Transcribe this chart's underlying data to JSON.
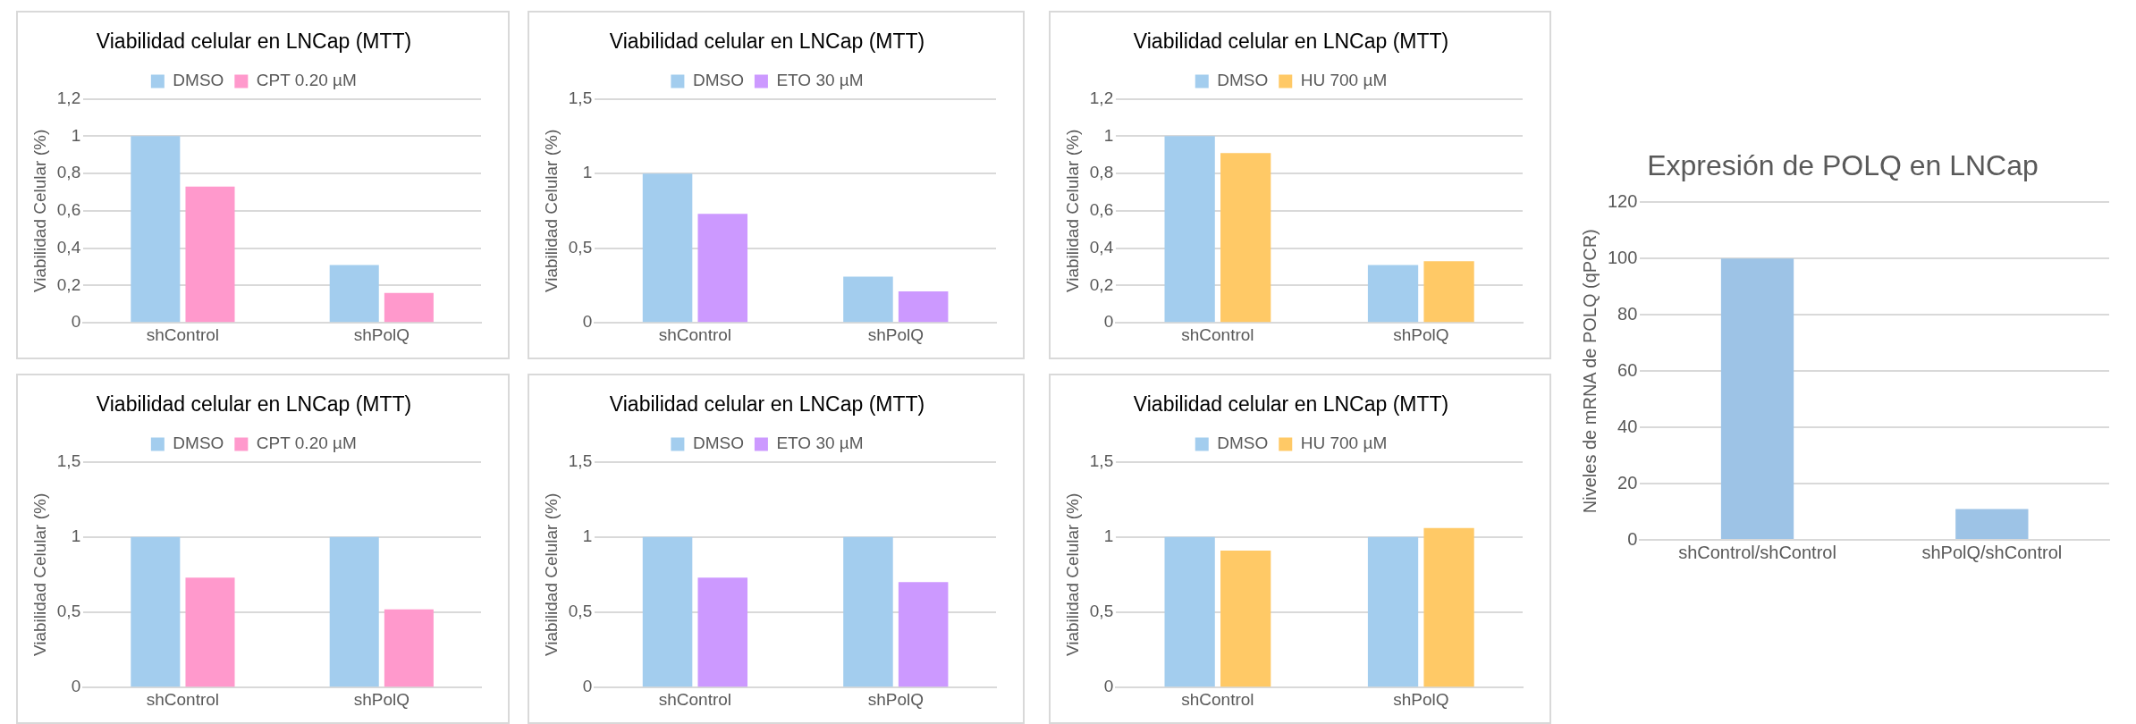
{
  "chart_data": [
    {
      "type": "bar",
      "title": "Viabilidad celular en LNCap (MTT)",
      "ylabel": "Viabilidad Celular (%)",
      "categories": [
        "shControl",
        "shPolQ"
      ],
      "series": [
        {
          "name": "DMSO",
          "color": "#a3cdee",
          "values": [
            1,
            0.31
          ]
        },
        {
          "name": "CPT 0.20 µM",
          "color": "#ff99cc",
          "values": [
            0.73,
            0.16
          ]
        }
      ],
      "ylim": [
        0,
        1.2
      ],
      "yticks": [
        0,
        {
          "value": 0.2,
          "label": "0,2"
        },
        {
          "value": 0.4,
          "label": "0,4"
        },
        {
          "value": 0.6,
          "label": "0,6"
        },
        {
          "value": 0.8,
          "label": "0,8"
        },
        1,
        {
          "value": 1.2,
          "label": "1,2"
        }
      ],
      "grid": "y",
      "legend": "top"
    },
    {
      "type": "bar",
      "title": "Viabilidad celular en LNCap (MTT)",
      "ylabel": "Viabilidad Celular (%)",
      "categories": [
        "shControl",
        "shPolQ"
      ],
      "series": [
        {
          "name": "DMSO",
          "color": "#a3cdee",
          "values": [
            1,
            0.31
          ]
        },
        {
          "name": "ETO 30 µM",
          "color": "#cc99ff",
          "values": [
            0.73,
            0.21
          ]
        }
      ],
      "ylim": [
        0,
        1.5
      ],
      "yticks": [
        0,
        {
          "value": 0.5,
          "label": "0,5"
        },
        1,
        {
          "value": 1.5,
          "label": "1,5"
        }
      ],
      "grid": "y",
      "legend": "top"
    },
    {
      "type": "bar",
      "title": "Viabilidad celular en LNCap (MTT)",
      "ylabel": "Viabilidad Celular (%)",
      "categories": [
        "shControl",
        "shPolQ"
      ],
      "series": [
        {
          "name": "DMSO",
          "color": "#a3cdee",
          "values": [
            1,
            0.31
          ]
        },
        {
          "name": "HU 700 µM",
          "color": "#ffc966",
          "values": [
            0.91,
            0.33
          ]
        }
      ],
      "ylim": [
        0,
        1.2
      ],
      "yticks": [
        0,
        {
          "value": 0.2,
          "label": "0,2"
        },
        {
          "value": 0.4,
          "label": "0,4"
        },
        {
          "value": 0.6,
          "label": "0,6"
        },
        {
          "value": 0.8,
          "label": "0,8"
        },
        1,
        {
          "value": 1.2,
          "label": "1,2"
        }
      ],
      "grid": "y",
      "legend": "top"
    },
    {
      "type": "bar",
      "title": "Expresión de POLQ en LNCap",
      "ylabel": "Niveles de mRNA de POLQ (qPCR)",
      "categories": [
        "shControl/shControl",
        "shPolQ/shControl"
      ],
      "series": [
        {
          "color": "#9dc3e6",
          "values": [
            100,
            11
          ]
        }
      ],
      "ylim": [
        0,
        120
      ],
      "yticks": [
        0,
        20,
        40,
        60,
        80,
        100,
        120
      ],
      "grid": "y"
    },
    {
      "type": "bar",
      "title": "Viabilidad celular en LNCap (MTT)",
      "ylabel": "Viabilidad Celular (%)",
      "categories": [
        "shControl",
        "shPolQ"
      ],
      "series": [
        {
          "name": "DMSO",
          "color": "#a3cdee",
          "values": [
            1,
            1
          ]
        },
        {
          "name": "CPT 0.20 µM",
          "color": "#ff99cc",
          "values": [
            0.73,
            0.52
          ]
        }
      ],
      "ylim": [
        0,
        1.5
      ],
      "yticks": [
        0,
        {
          "value": 0.5,
          "label": "0,5"
        },
        1,
        {
          "value": 1.5,
          "label": "1,5"
        }
      ],
      "grid": "y",
      "legend": "top"
    },
    {
      "type": "bar",
      "title": "Viabilidad celular en LNCap (MTT)",
      "ylabel": "Viabilidad Celular (%)",
      "categories": [
        "shControl",
        "shPolQ"
      ],
      "series": [
        {
          "name": "DMSO",
          "color": "#a3cdee",
          "values": [
            1,
            1
          ]
        },
        {
          "name": "ETO 30 µM",
          "color": "#cc99ff",
          "values": [
            0.73,
            0.7
          ]
        }
      ],
      "ylim": [
        0,
        1.5
      ],
      "yticks": [
        0,
        {
          "value": 0.5,
          "label": "0,5"
        },
        1,
        {
          "value": 1.5,
          "label": "1,5"
        }
      ],
      "grid": "y",
      "legend": "top"
    },
    {
      "type": "bar",
      "title": "Viabilidad celular en LNCap (MTT)",
      "ylabel": "Viabilidad Celular (%)",
      "categories": [
        "shControl",
        "shPolQ"
      ],
      "series": [
        {
          "name": "DMSO",
          "color": "#a3cdee",
          "values": [
            1,
            1
          ]
        },
        {
          "name": "HU 700 µM",
          "color": "#ffc966",
          "values": [
            0.91,
            1.06
          ]
        }
      ],
      "ylim": [
        0,
        1.5
      ],
      "yticks": [
        0,
        {
          "value": 0.5,
          "label": "0,5"
        },
        1,
        {
          "value": 1.5,
          "label": "1,5"
        }
      ],
      "grid": "y",
      "legend": "top"
    }
  ]
}
